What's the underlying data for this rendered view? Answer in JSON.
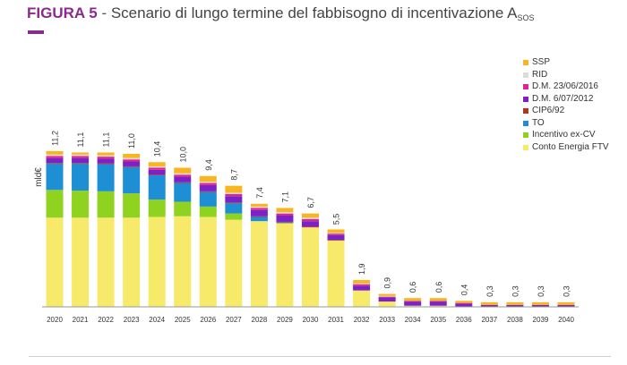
{
  "figure": {
    "label": "FIGURA 5",
    "separator": " - ",
    "title": "Scenario di lungo termine del fabbisogno di incentivazione A",
    "title_subscript": "SOS"
  },
  "chart_data": {
    "type": "bar",
    "stacked": true,
    "ylabel": "mld€",
    "xlabel": "",
    "ylim": [
      0,
      12
    ],
    "grid": false,
    "legend_position": "top-right",
    "categories": [
      "2020",
      "2021",
      "2022",
      "2023",
      "2024",
      "2025",
      "2026",
      "2027",
      "2028",
      "2029",
      "2030",
      "2031",
      "2032",
      "2033",
      "2034",
      "2035",
      "2036",
      "2037",
      "2038",
      "2039",
      "2040"
    ],
    "totals": [
      11.2,
      11.1,
      11.1,
      11.0,
      10.4,
      10.0,
      9.4,
      8.7,
      7.4,
      7.1,
      6.7,
      5.5,
      1.9,
      0.9,
      0.6,
      0.6,
      0.4,
      0.3,
      0.3,
      0.3,
      0.3
    ],
    "total_labels": [
      "11,2",
      "11,1",
      "11,1",
      "11,0",
      "10,4",
      "10,0",
      "9,4",
      "8,7",
      "7,4",
      "7,1",
      "6,7",
      "5,5",
      "1,9",
      "0,9",
      "0,6",
      "0,6",
      "0,4",
      "0,3",
      "0,3",
      "0,3",
      "0,3"
    ],
    "series": [
      {
        "name": "Conto Energia FTV",
        "color": "#f7ea6a",
        "values": [
          6.4,
          6.4,
          6.4,
          6.4,
          6.45,
          6.5,
          6.45,
          6.25,
          6.15,
          6.0,
          5.7,
          4.75,
          1.15,
          0.35,
          0.05,
          0.05,
          0.0,
          0.0,
          0.0,
          0.0,
          0.0
        ]
      },
      {
        "name": "Incentivo ex-CV",
        "color": "#8fd21f",
        "values": [
          2.0,
          1.95,
          1.9,
          1.75,
          1.25,
          1.05,
          0.75,
          0.45,
          0.0,
          0.0,
          0.0,
          0.0,
          0.0,
          0.0,
          0.0,
          0.0,
          0.0,
          0.0,
          0.0,
          0.0,
          0.0
        ]
      },
      {
        "name": "TO",
        "color": "#1e8fd5",
        "values": [
          1.9,
          1.95,
          1.95,
          1.9,
          1.75,
          1.35,
          1.05,
          0.75,
          0.3,
          0.05,
          0.0,
          0.0,
          0.0,
          0.0,
          0.0,
          0.0,
          0.0,
          0.0,
          0.0,
          0.0,
          0.0
        ]
      },
      {
        "name": "CIP6/92",
        "color": "#b0361e",
        "values": [
          0.05,
          0.05,
          0.05,
          0.05,
          0.05,
          0.05,
          0.05,
          0.05,
          0.05,
          0.05,
          0.05,
          0.05,
          0.0,
          0.0,
          0.0,
          0.0,
          0.0,
          0.0,
          0.0,
          0.0,
          0.0
        ]
      },
      {
        "name": "D.M.  6/07/2012",
        "color": "#7a22c8",
        "values": [
          0.35,
          0.35,
          0.35,
          0.35,
          0.35,
          0.4,
          0.45,
          0.45,
          0.45,
          0.45,
          0.4,
          0.35,
          0.35,
          0.3,
          0.3,
          0.3,
          0.2,
          0.1,
          0.1,
          0.1,
          0.1
        ]
      },
      {
        "name": "D.M. 23/06/2016",
        "color": "#e2238e",
        "values": [
          0.15,
          0.15,
          0.15,
          0.15,
          0.15,
          0.15,
          0.15,
          0.15,
          0.15,
          0.15,
          0.15,
          0.1,
          0.1,
          0.05,
          0.05,
          0.05,
          0.05,
          0.0,
          0.0,
          0.0,
          0.0
        ]
      },
      {
        "name": "RID",
        "color": "#dcdcdc",
        "values": [
          0.1,
          0.1,
          0.1,
          0.1,
          0.1,
          0.1,
          0.1,
          0.1,
          0.1,
          0.1,
          0.1,
          0.05,
          0.05,
          0.05,
          0.0,
          0.0,
          0.0,
          0.0,
          0.0,
          0.0,
          0.0
        ]
      },
      {
        "name": "SSP",
        "color": "#f9b51e",
        "values": [
          0.25,
          0.15,
          0.2,
          0.3,
          0.3,
          0.4,
          0.4,
          0.5,
          0.2,
          0.3,
          0.3,
          0.25,
          0.25,
          0.15,
          0.2,
          0.2,
          0.15,
          0.2,
          0.2,
          0.2,
          0.2
        ]
      }
    ]
  }
}
